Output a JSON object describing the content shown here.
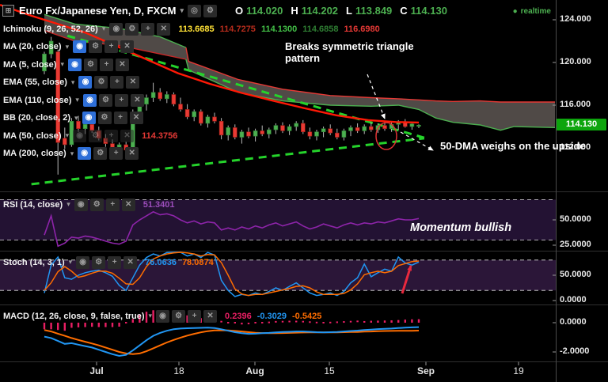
{
  "header": {
    "layout_icon": "⊞",
    "symbol": "Euro Fx/Japanese Yen, D, FXCM",
    "dropdown_icon": "▾",
    "toolbar_icons": [
      {
        "name": "compare-icon",
        "glyph": "◎"
      },
      {
        "name": "settings-icon",
        "glyph": "⚙"
      }
    ],
    "ohlc": [
      {
        "label": "O",
        "value": "114.020"
      },
      {
        "label": "H",
        "value": "114.202"
      },
      {
        "label": "L",
        "value": "113.849"
      },
      {
        "label": "C",
        "value": "114.130"
      }
    ],
    "realtime": {
      "dot": "●",
      "label": "realtime"
    }
  },
  "indicator_icons": [
    {
      "name": "visibility-icon",
      "glyph": "◉"
    },
    {
      "name": "settings-icon",
      "glyph": "⚙"
    },
    {
      "name": "add-icon",
      "glyph": "+"
    },
    {
      "name": "close-icon",
      "glyph": "✕"
    }
  ],
  "overlays": [
    {
      "label": "Ichimoku (9, 26, 52, 26)",
      "active": false,
      "faded": false,
      "values": [
        {
          "t": "113.6685",
          "c": "#ffe135"
        },
        {
          "t": "114.7275",
          "c": "#b72c1c"
        },
        {
          "t": "114.1300",
          "c": "#43c047"
        },
        {
          "t": "114.6858",
          "c": "#2e7d32"
        },
        {
          "t": "116.6980",
          "c": "#e53935"
        }
      ]
    },
    {
      "label": "MA (20, close)",
      "active": true,
      "faded": false,
      "values": []
    },
    {
      "label": "MA (5, close)",
      "active": true,
      "faded": false,
      "values": []
    },
    {
      "label": "EMA (55, close)",
      "active": true,
      "faded": false,
      "values": []
    },
    {
      "label": "EMA (110, close)",
      "active": true,
      "faded": false,
      "values": []
    },
    {
      "label": "BB (20, close, 2)",
      "active": true,
      "faded": false,
      "values": []
    },
    {
      "label": "MA (50, close)",
      "active": false,
      "faded": true,
      "values": [
        {
          "t": "114.3756",
          "c": "#e53935"
        }
      ]
    },
    {
      "label": "MA (200, close)",
      "active": true,
      "faded": false,
      "values": []
    }
  ],
  "panes": [
    {
      "id": "rsi",
      "label": "RSI (14, close)",
      "values": [
        {
          "t": "51.3401",
          "c": "#9c4dbb"
        }
      ]
    },
    {
      "id": "stoch",
      "label": "Stoch (14, 3, 1)",
      "values": [
        {
          "t": "76.0636",
          "c": "#2196f3"
        },
        {
          "t": "78.0874",
          "c": "#ff6d00"
        }
      ]
    },
    {
      "id": "macd",
      "label": "MACD (12, 26, close, 9, false, true)",
      "values": [
        {
          "t": "0.2396",
          "c": "#e91e63"
        },
        {
          "t": "-0.3029",
          "c": "#2196f3"
        },
        {
          "t": "-0.5425",
          "c": "#ff6d00"
        }
      ]
    }
  ],
  "annotations": {
    "triangle_break": "Breaks symmetric triangle pattern",
    "dma_weighs": "50-DMA weighs on the upside",
    "momentum": "Momentum bullish"
  },
  "axis": {
    "price": [
      "124.000",
      "120.000",
      "116.000",
      "112.000"
    ],
    "last_price": "114.130",
    "rsi": [
      "50.0000",
      "25.0000"
    ],
    "stoch": [
      "50.0000",
      "0.0000"
    ],
    "macd": [
      "0.0000",
      "-2.0000"
    ],
    "time": [
      {
        "t": "Jul",
        "bold": true
      },
      {
        "t": "18",
        "bold": false
      },
      {
        "t": "Aug",
        "bold": true
      },
      {
        "t": "15",
        "bold": false
      },
      {
        "t": "Sep",
        "bold": true
      },
      {
        "t": "19",
        "bold": false
      }
    ]
  },
  "colors": {
    "up": "#4caf50",
    "down": "#e93a34",
    "wick": "#b8b8b8",
    "cloud": "#57504d",
    "cloud_top_left": "#4caf50",
    "cloud_top_right": "#e53935",
    "cloud_bot_left": "#c62828",
    "cloud_bot_right": "#4caf50",
    "ma50": "#ff1906",
    "trendline": "#25d32b",
    "rsi": "#8e24aa",
    "band_rsi": "#231233",
    "band_stoch": "#2b1638",
    "stoch_k": "#2196f3",
    "stoch_d": "#ff6d00",
    "macd": "#2196f3",
    "macd_signal": "#ff6d00",
    "macd_hist": "#e91e63",
    "ohlc_value": "#4caf50",
    "realtime": "#4caf50",
    "badge_bg": "#0da50d",
    "level_dash": "#dcdcdc",
    "separator": "#303030",
    "annotation_arrow": "#ffffff",
    "stoch_arrow": "#e8293e",
    "ellipse": "#d33"
  },
  "chart_data": {
    "type": "candlestick+indicators",
    "title": "Euro Fx/Japanese Yen, Daily, FXCM",
    "price_axis_range": [
      110.5,
      125.8
    ],
    "candles": [
      {
        "o": 119.2,
        "h": 121.0,
        "l": 118.9,
        "c": 120.8
      },
      {
        "o": 120.8,
        "h": 122.4,
        "l": 120.4,
        "c": 122.0
      },
      {
        "o": 121.0,
        "h": 121.2,
        "l": 109.5,
        "c": 112.5
      },
      {
        "o": 112.9,
        "h": 113.9,
        "l": 111.9,
        "c": 112.3
      },
      {
        "o": 112.3,
        "h": 114.8,
        "l": 112.1,
        "c": 114.5
      },
      {
        "o": 114.5,
        "h": 115.0,
        "l": 113.5,
        "c": 113.8
      },
      {
        "o": 113.8,
        "h": 114.5,
        "l": 113.3,
        "c": 114.2
      },
      {
        "o": 114.2,
        "h": 114.6,
        "l": 113.4,
        "c": 113.6
      },
      {
        "o": 113.6,
        "h": 114.0,
        "l": 112.7,
        "c": 112.9
      },
      {
        "o": 112.9,
        "h": 113.3,
        "l": 112.1,
        "c": 112.4
      },
      {
        "o": 112.4,
        "h": 112.8,
        "l": 111.7,
        "c": 111.9
      },
      {
        "o": 111.9,
        "h": 112.5,
        "l": 111.4,
        "c": 112.3
      },
      {
        "o": 112.3,
        "h": 112.6,
        "l": 111.6,
        "c": 111.8
      },
      {
        "o": 111.8,
        "h": 115.6,
        "l": 111.7,
        "c": 115.3
      },
      {
        "o": 115.3,
        "h": 116.4,
        "l": 114.7,
        "c": 116.1
      },
      {
        "o": 116.1,
        "h": 117.0,
        "l": 115.5,
        "c": 116.7
      },
      {
        "o": 116.7,
        "h": 118.1,
        "l": 116.3,
        "c": 117.2
      },
      {
        "o": 117.2,
        "h": 117.6,
        "l": 116.4,
        "c": 116.6
      },
      {
        "o": 116.6,
        "h": 117.3,
        "l": 116.2,
        "c": 117.0
      },
      {
        "o": 117.0,
        "h": 117.2,
        "l": 115.9,
        "c": 116.1
      },
      {
        "o": 116.1,
        "h": 116.7,
        "l": 115.4,
        "c": 115.6
      },
      {
        "o": 115.6,
        "h": 116.1,
        "l": 114.7,
        "c": 114.9
      },
      {
        "o": 114.9,
        "h": 115.6,
        "l": 114.5,
        "c": 115.4
      },
      {
        "o": 115.4,
        "h": 115.6,
        "l": 114.1,
        "c": 114.3
      },
      {
        "o": 114.3,
        "h": 115.1,
        "l": 113.9,
        "c": 114.9
      },
      {
        "o": 114.9,
        "h": 115.3,
        "l": 114.3,
        "c": 114.5
      },
      {
        "o": 114.5,
        "h": 114.8,
        "l": 112.8,
        "c": 113.2
      },
      {
        "o": 113.2,
        "h": 114.1,
        "l": 112.7,
        "c": 113.9
      },
      {
        "o": 113.9,
        "h": 114.2,
        "l": 112.8,
        "c": 113.0
      },
      {
        "o": 113.0,
        "h": 113.7,
        "l": 112.4,
        "c": 113.5
      },
      {
        "o": 113.5,
        "h": 113.9,
        "l": 112.9,
        "c": 113.1
      },
      {
        "o": 113.1,
        "h": 113.8,
        "l": 112.6,
        "c": 113.6
      },
      {
        "o": 113.6,
        "h": 114.1,
        "l": 113.1,
        "c": 113.3
      },
      {
        "o": 113.3,
        "h": 113.9,
        "l": 112.9,
        "c": 113.7
      },
      {
        "o": 113.7,
        "h": 114.3,
        "l": 113.3,
        "c": 114.1
      },
      {
        "o": 114.1,
        "h": 114.4,
        "l": 113.4,
        "c": 113.6
      },
      {
        "o": 113.6,
        "h": 114.2,
        "l": 113.2,
        "c": 114.0
      },
      {
        "o": 114.0,
        "h": 114.5,
        "l": 113.6,
        "c": 114.3
      },
      {
        "o": 114.3,
        "h": 114.6,
        "l": 113.3,
        "c": 113.5
      },
      {
        "o": 113.5,
        "h": 113.9,
        "l": 112.8,
        "c": 113.1
      },
      {
        "o": 113.1,
        "h": 113.7,
        "l": 112.7,
        "c": 113.5
      },
      {
        "o": 113.5,
        "h": 114.0,
        "l": 113.0,
        "c": 113.8
      },
      {
        "o": 113.8,
        "h": 114.2,
        "l": 113.2,
        "c": 113.4
      },
      {
        "o": 113.4,
        "h": 113.8,
        "l": 112.8,
        "c": 113.0
      },
      {
        "o": 113.0,
        "h": 113.8,
        "l": 112.7,
        "c": 113.6
      },
      {
        "o": 113.6,
        "h": 114.1,
        "l": 113.1,
        "c": 113.9
      },
      {
        "o": 113.9,
        "h": 114.3,
        "l": 113.4,
        "c": 113.6
      },
      {
        "o": 113.6,
        "h": 114.2,
        "l": 113.3,
        "c": 114.0
      },
      {
        "o": 114.0,
        "h": 114.4,
        "l": 113.5,
        "c": 113.7
      },
      {
        "o": 113.7,
        "h": 114.3,
        "l": 113.4,
        "c": 114.1
      },
      {
        "o": 114.1,
        "h": 114.5,
        "l": 113.6,
        "c": 113.8
      },
      {
        "o": 113.8,
        "h": 114.4,
        "l": 113.5,
        "c": 114.2
      },
      {
        "o": 114.2,
        "h": 114.6,
        "l": 113.7,
        "c": 114.4
      },
      {
        "o": 114.4,
        "h": 114.7,
        "l": 113.9,
        "c": 114.0
      },
      {
        "o": 114.0,
        "h": 114.4,
        "l": 113.7,
        "c": 114.25
      },
      {
        "o": 114.02,
        "h": 114.202,
        "l": 113.849,
        "c": 114.13
      }
    ],
    "rsi": [
      35,
      54,
      24,
      27,
      33,
      32,
      34,
      33,
      31,
      29,
      27,
      26,
      29,
      45,
      50,
      54,
      58,
      55,
      56,
      54,
      50,
      47,
      49,
      46,
      48,
      47,
      40,
      42,
      40,
      43,
      41,
      44,
      42,
      45,
      47,
      44,
      46,
      48,
      44,
      41,
      43,
      46,
      44,
      42,
      45,
      47,
      45,
      47,
      46,
      48,
      47,
      49,
      51,
      50,
      50,
      51.34
    ],
    "rsi_levels": [
      70,
      30
    ],
    "stoch_k": [
      15,
      70,
      86,
      45,
      42,
      50,
      55,
      58,
      60,
      55,
      48,
      30,
      20,
      45,
      70,
      85,
      92,
      88,
      95,
      99,
      96,
      88,
      92,
      85,
      95,
      90,
      40,
      20,
      8,
      12,
      10,
      15,
      12,
      18,
      25,
      20,
      28,
      35,
      25,
      15,
      10,
      12,
      15,
      10,
      18,
      35,
      45,
      72,
      47,
      55,
      62,
      58,
      86,
      74,
      70,
      76.06
    ],
    "stoch_d": [
      20,
      35,
      57,
      67,
      58,
      46,
      49,
      54,
      58,
      58,
      54,
      44,
      33,
      32,
      45,
      67,
      82,
      88,
      92,
      94,
      97,
      94,
      92,
      88,
      91,
      90,
      75,
      50,
      23,
      13,
      10,
      12,
      12,
      15,
      18,
      21,
      24,
      28,
      29,
      25,
      17,
      12,
      12,
      12,
      14,
      21,
      33,
      51,
      55,
      58,
      55,
      58,
      69,
      73,
      77,
      78.09
    ],
    "stoch_levels": [
      80,
      20
    ],
    "macd": [
      -0.95,
      -1.05,
      -1.25,
      -1.45,
      -1.4,
      -1.5,
      -1.6,
      -1.7,
      -1.85,
      -2.0,
      -2.15,
      -2.27,
      -2.2,
      -1.9,
      -1.55,
      -1.2,
      -0.9,
      -0.7,
      -0.55,
      -0.45,
      -0.4,
      -0.38,
      -0.36,
      -0.35,
      -0.34,
      -0.36,
      -0.45,
      -0.55,
      -0.65,
      -0.72,
      -0.76,
      -0.75,
      -0.72,
      -0.7,
      -0.66,
      -0.64,
      -0.62,
      -0.6,
      -0.6,
      -0.62,
      -0.65,
      -0.66,
      -0.65,
      -0.63,
      -0.6,
      -0.57,
      -0.54,
      -0.5,
      -0.47,
      -0.44,
      -0.42,
      -0.4,
      -0.37,
      -0.34,
      -0.32,
      -0.3029
    ],
    "macd_signal": [
      -0.5,
      -0.6,
      -0.75,
      -0.9,
      -1.05,
      -1.18,
      -1.3,
      -1.42,
      -1.55,
      -1.7,
      -1.85,
      -2.0,
      -2.1,
      -2.15,
      -2.1,
      -1.95,
      -1.75,
      -1.55,
      -1.35,
      -1.18,
      -1.02,
      -0.88,
      -0.76,
      -0.66,
      -0.58,
      -0.53,
      -0.52,
      -0.53,
      -0.56,
      -0.6,
      -0.65,
      -0.69,
      -0.71,
      -0.72,
      -0.72,
      -0.71,
      -0.7,
      -0.68,
      -0.67,
      -0.66,
      -0.66,
      -0.66,
      -0.66,
      -0.66,
      -0.65,
      -0.64,
      -0.63,
      -0.61,
      -0.6,
      -0.58,
      -0.57,
      -0.56,
      -0.55,
      -0.55,
      -0.55,
      -0.5425
    ],
    "ma50": [
      [
        -6.5,
        125.4
      ],
      [
        -2,
        124.4
      ],
      [
        2,
        123.6
      ],
      [
        6,
        122.8
      ],
      [
        10,
        121.7
      ],
      [
        15,
        120.3
      ],
      [
        19.6,
        119.0
      ],
      [
        24.3,
        118.0
      ],
      [
        29,
        117.15
      ],
      [
        33.7,
        116.4
      ],
      [
        38.3,
        115.7
      ],
      [
        42.9,
        115.05
      ],
      [
        47.6,
        114.6
      ],
      [
        51.6,
        114.42
      ],
      [
        55,
        114.38
      ]
    ],
    "ichimoku_cloud": [
      [
        0,
        124.5,
        123.0
      ],
      [
        4.5,
        123.6,
        122.0
      ],
      [
        11,
        123.2,
        121.6
      ],
      [
        17,
        122.4,
        120.8
      ],
      [
        20.8,
        121.4,
        120.3
      ],
      [
        21.2,
        120.1,
        119.3
      ],
      [
        28.5,
        118.4,
        117.2
      ],
      [
        35,
        117.5,
        116.4
      ],
      [
        42,
        116.9,
        116.0
      ],
      [
        48,
        116.7,
        115.9
      ],
      [
        52,
        116.6,
        116.0
      ],
      [
        55,
        116.5,
        115.6
      ],
      [
        57.5,
        116.4,
        114.8
      ],
      [
        60,
        116.35,
        114.4
      ],
      [
        64,
        116.4,
        114.15
      ],
      [
        67,
        116.3,
        113.65
      ],
      [
        69,
        116.3,
        114.0
      ],
      [
        75,
        116.3,
        113.9
      ]
    ],
    "cloud_color_switch_index": 21,
    "trendlines": [
      {
        "name": "descending",
        "i1": 3.4,
        "p1": 122.5,
        "i2": 55.8,
        "p2": 112.95
      },
      {
        "name": "ascending",
        "i1": -1.9,
        "p1": 108.6,
        "i2": 55.8,
        "p2": 112.9
      }
    ]
  }
}
